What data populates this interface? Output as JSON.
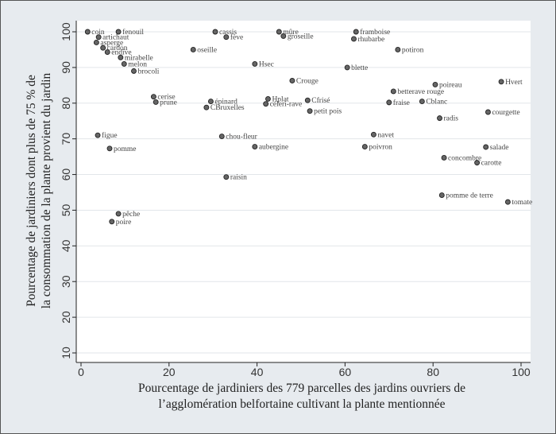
{
  "chart_data": {
    "type": "scatter",
    "title": "",
    "xlabel": [
      "Pourcentage de jardiniers des 779 parcelles des jardins ouvriers de",
      "l’agglomération belfortaine cultivant la plante mentionnée"
    ],
    "ylabel": [
      "Pourcentage de jardiniers dont plus de 75 % de",
      "la consommation de la  plante provient du jardin"
    ],
    "xlim": [
      0,
      100
    ],
    "ylim": [
      10,
      100
    ],
    "xticks": [
      0,
      20,
      40,
      60,
      80,
      100
    ],
    "yticks": [
      10,
      20,
      30,
      40,
      50,
      60,
      70,
      80,
      90,
      100
    ],
    "grid": true,
    "points": [
      {
        "label": "coin",
        "x": 1.5,
        "y": 100
      },
      {
        "label": "fenouil",
        "x": 8.5,
        "y": 100
      },
      {
        "label": "artichaut",
        "x": 4,
        "y": 98.5
      },
      {
        "label": "asperge",
        "x": 3.5,
        "y": 97
      },
      {
        "label": "cardon",
        "x": 5,
        "y": 95.5
      },
      {
        "label": "endive",
        "x": 6,
        "y": 94.3
      },
      {
        "label": "mirabelle",
        "x": 9,
        "y": 92.8
      },
      {
        "label": "melon",
        "x": 9.8,
        "y": 91
      },
      {
        "label": "brocoli",
        "x": 12,
        "y": 89
      },
      {
        "label": "cassis",
        "x": 30.5,
        "y": 100
      },
      {
        "label": "fève",
        "x": 33,
        "y": 98.5
      },
      {
        "label": "oseille",
        "x": 25.5,
        "y": 95
      },
      {
        "label": "mûre",
        "x": 45,
        "y": 100
      },
      {
        "label": "groseille",
        "x": 46,
        "y": 98.8
      },
      {
        "label": "framboise",
        "x": 62.5,
        "y": 100
      },
      {
        "label": "rhubarbe",
        "x": 62,
        "y": 98
      },
      {
        "label": "potiron",
        "x": 72,
        "y": 95
      },
      {
        "label": "Hsec",
        "x": 39.5,
        "y": 91
      },
      {
        "label": "blette",
        "x": 60.5,
        "y": 90
      },
      {
        "label": "Crouge",
        "x": 48,
        "y": 86.3
      },
      {
        "label": "poireau",
        "x": 80.5,
        "y": 85.2
      },
      {
        "label": "Hvert",
        "x": 95.5,
        "y": 86
      },
      {
        "label": "betterave rouge",
        "x": 71,
        "y": 83.3
      },
      {
        "label": "cerise",
        "x": 16.5,
        "y": 81.8
      },
      {
        "label": "prune",
        "x": 17,
        "y": 80.3
      },
      {
        "label": "épinard",
        "x": 29.5,
        "y": 80.5
      },
      {
        "label": "CBruxelles",
        "x": 28.5,
        "y": 78.8
      },
      {
        "label": "Hplat",
        "x": 42.5,
        "y": 81.2
      },
      {
        "label": "céleri-rave",
        "x": 42,
        "y": 79.8
      },
      {
        "label": "Cfrisé",
        "x": 51.5,
        "y": 80.8
      },
      {
        "label": "petit pois",
        "x": 52,
        "y": 77.8
      },
      {
        "label": "fraise",
        "x": 70,
        "y": 80.2
      },
      {
        "label": "Cblanc",
        "x": 77.5,
        "y": 80.5
      },
      {
        "label": "courgette",
        "x": 92.5,
        "y": 77.5
      },
      {
        "label": "radis",
        "x": 81.5,
        "y": 75.8
      },
      {
        "label": "figue",
        "x": 3.8,
        "y": 71
      },
      {
        "label": "pomme",
        "x": 6.5,
        "y": 67.3
      },
      {
        "label": "chou-fleur",
        "x": 32,
        "y": 70.7
      },
      {
        "label": "aubergine",
        "x": 39.5,
        "y": 67.8
      },
      {
        "label": "navet",
        "x": 66.5,
        "y": 71.2
      },
      {
        "label": "poivron",
        "x": 64.5,
        "y": 67.8
      },
      {
        "label": "salade",
        "x": 92,
        "y": 67.7
      },
      {
        "label": "concombre",
        "x": 82.5,
        "y": 64.7
      },
      {
        "label": "carotte",
        "x": 90,
        "y": 63.3
      },
      {
        "label": "raisin",
        "x": 33,
        "y": 59.3
      },
      {
        "label": "pomme de terre",
        "x": 82,
        "y": 54.2
      },
      {
        "label": "tomate",
        "x": 97,
        "y": 52.3
      },
      {
        "label": "pêche",
        "x": 8.5,
        "y": 49
      },
      {
        "label": "poire",
        "x": 7,
        "y": 46.8
      }
    ]
  }
}
